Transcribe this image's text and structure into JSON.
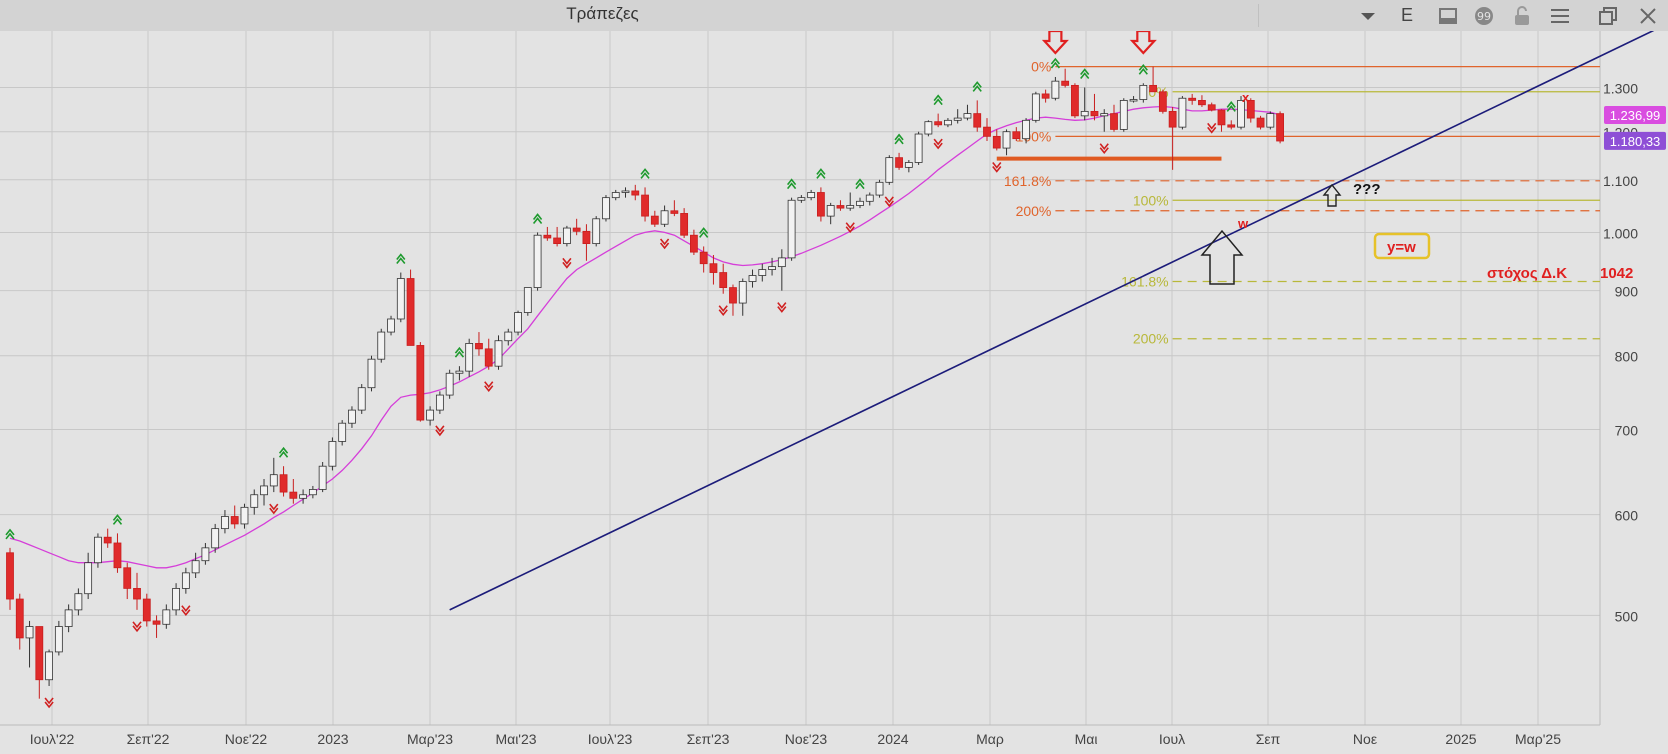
{
  "window": {
    "title": "Τράπεζες",
    "toolbar_icons": [
      "dropdown-icon",
      "e-button",
      "panel-icon",
      "comment-icon",
      "lock-icon",
      "menu-icon",
      "restore-window-icon",
      "close-icon"
    ],
    "e_label": "E"
  },
  "chart_data": {
    "type": "candlestick",
    "x_tick_labels": [
      "Ιουλ'22",
      "Σεπ'22",
      "Νοε'22",
      "2023",
      "Μαρ'23",
      "Μαι'23",
      "Ιουλ'23",
      "Σεπ'23",
      "Νοε'23",
      "2024",
      "Μαρ",
      "Μαι",
      "Ιουλ",
      "Σεπ",
      "Νοε",
      "2025",
      "Μαρ'25"
    ],
    "y_tick_labels": [
      "500",
      "600",
      "700",
      "800",
      "900",
      "1.000",
      "1.100",
      "1.200",
      "1.300"
    ],
    "y_ticks": [
      500,
      600,
      700,
      800,
      900,
      1000,
      1100,
      1200,
      1300
    ],
    "ylim": [
      410,
      1440
    ],
    "y_scale": "log",
    "grid": true,
    "price_badges": [
      {
        "label": "1.236,99",
        "value": 1236.99,
        "color": "#d94de0"
      },
      {
        "label": "1.180,33",
        "value": 1180.33,
        "color": "#8e4fd6"
      }
    ],
    "candles": [
      [
        560,
        565,
        505,
        515
      ],
      [
        515,
        520,
        470,
        480
      ],
      [
        480,
        495,
        455,
        490
      ],
      [
        490,
        490,
        430,
        445
      ],
      [
        445,
        470,
        440,
        468
      ],
      [
        468,
        495,
        465,
        490
      ],
      [
        490,
        510,
        485,
        505
      ],
      [
        505,
        525,
        500,
        520
      ],
      [
        520,
        560,
        515,
        550
      ],
      [
        550,
        580,
        545,
        576
      ],
      [
        576,
        585,
        565,
        570
      ],
      [
        570,
        580,
        540,
        545
      ],
      [
        545,
        550,
        515,
        525
      ],
      [
        525,
        540,
        505,
        515
      ],
      [
        515,
        520,
        490,
        495
      ],
      [
        495,
        500,
        480,
        492
      ],
      [
        492,
        510,
        488,
        505
      ],
      [
        505,
        530,
        500,
        525
      ],
      [
        525,
        545,
        520,
        540
      ],
      [
        540,
        560,
        535,
        552
      ],
      [
        552,
        570,
        548,
        565
      ],
      [
        565,
        590,
        560,
        585
      ],
      [
        585,
        605,
        580,
        598
      ],
      [
        598,
        610,
        585,
        590
      ],
      [
        590,
        612,
        585,
        608
      ],
      [
        608,
        628,
        600,
        622
      ],
      [
        622,
        640,
        610,
        632
      ],
      [
        632,
        665,
        625,
        645
      ],
      [
        645,
        655,
        620,
        625
      ],
      [
        625,
        640,
        612,
        618
      ],
      [
        618,
        628,
        612,
        622
      ],
      [
        622,
        632,
        618,
        628
      ],
      [
        628,
        660,
        625,
        655
      ],
      [
        655,
        690,
        650,
        685
      ],
      [
        685,
        712,
        680,
        708
      ],
      [
        708,
        730,
        702,
        725
      ],
      [
        725,
        760,
        720,
        755
      ],
      [
        755,
        800,
        750,
        795
      ],
      [
        795,
        840,
        790,
        835
      ],
      [
        835,
        860,
        830,
        855
      ],
      [
        855,
        930,
        850,
        920
      ],
      [
        920,
        935,
        815,
        815
      ],
      [
        815,
        820,
        710,
        712
      ],
      [
        712,
        730,
        705,
        725
      ],
      [
        725,
        750,
        720,
        745
      ],
      [
        745,
        780,
        740,
        775
      ],
      [
        775,
        785,
        765,
        778
      ],
      [
        778,
        825,
        770,
        818
      ],
      [
        818,
        835,
        800,
        810
      ],
      [
        810,
        825,
        780,
        785
      ],
      [
        785,
        830,
        780,
        822
      ],
      [
        822,
        840,
        815,
        835
      ],
      [
        835,
        868,
        830,
        865
      ],
      [
        865,
        905,
        860,
        905
      ],
      [
        905,
        1000,
        900,
        995
      ],
      [
        995,
        1010,
        985,
        990
      ],
      [
        990,
        1010,
        975,
        980
      ],
      [
        980,
        1012,
        975,
        1008
      ],
      [
        1008,
        1025,
        995,
        1002
      ],
      [
        1002,
        1015,
        950,
        980
      ],
      [
        980,
        1030,
        975,
        1025
      ],
      [
        1025,
        1070,
        1020,
        1065
      ],
      [
        1065,
        1080,
        1060,
        1075
      ],
      [
        1075,
        1085,
        1065,
        1078
      ],
      [
        1078,
        1090,
        1060,
        1070
      ],
      [
        1070,
        1085,
        1020,
        1030
      ],
      [
        1030,
        1040,
        1010,
        1015
      ],
      [
        1015,
        1050,
        1010,
        1040
      ],
      [
        1040,
        1060,
        1030,
        1035
      ],
      [
        1035,
        1045,
        990,
        995
      ],
      [
        995,
        1005,
        960,
        965
      ],
      [
        965,
        975,
        930,
        945
      ],
      [
        945,
        960,
        910,
        930
      ],
      [
        930,
        945,
        895,
        905
      ],
      [
        905,
        910,
        860,
        880
      ],
      [
        880,
        920,
        860,
        915
      ],
      [
        915,
        935,
        905,
        925
      ],
      [
        925,
        945,
        915,
        935
      ],
      [
        935,
        955,
        925,
        940
      ],
      [
        940,
        970,
        900,
        955
      ],
      [
        955,
        1065,
        950,
        1060
      ],
      [
        1060,
        1070,
        1055,
        1065
      ],
      [
        1065,
        1080,
        1060,
        1075
      ],
      [
        1075,
        1085,
        1020,
        1030
      ],
      [
        1030,
        1055,
        1015,
        1050
      ],
      [
        1050,
        1060,
        1040,
        1045
      ],
      [
        1045,
        1075,
        1040,
        1050
      ],
      [
        1050,
        1065,
        1045,
        1058
      ],
      [
        1058,
        1075,
        1050,
        1070
      ],
      [
        1070,
        1100,
        1065,
        1095
      ],
      [
        1095,
        1150,
        1090,
        1145
      ],
      [
        1145,
        1155,
        1120,
        1125
      ],
      [
        1125,
        1140,
        1115,
        1135
      ],
      [
        1135,
        1200,
        1130,
        1195
      ],
      [
        1195,
        1225,
        1190,
        1222
      ],
      [
        1222,
        1240,
        1210,
        1215
      ],
      [
        1215,
        1230,
        1210,
        1225
      ],
      [
        1225,
        1250,
        1218,
        1230
      ],
      [
        1230,
        1260,
        1225,
        1240
      ],
      [
        1240,
        1270,
        1200,
        1210
      ],
      [
        1210,
        1230,
        1180,
        1190
      ],
      [
        1190,
        1205,
        1160,
        1165
      ],
      [
        1165,
        1205,
        1150,
        1200
      ],
      [
        1200,
        1210,
        1180,
        1185
      ],
      [
        1185,
        1230,
        1175,
        1225
      ],
      [
        1225,
        1290,
        1220,
        1285
      ],
      [
        1285,
        1295,
        1265,
        1275
      ],
      [
        1275,
        1325,
        1270,
        1315
      ],
      [
        1315,
        1345,
        1300,
        1305
      ],
      [
        1305,
        1310,
        1230,
        1235
      ],
      [
        1235,
        1300,
        1225,
        1245
      ],
      [
        1245,
        1285,
        1225,
        1235
      ],
      [
        1235,
        1250,
        1200,
        1240
      ],
      [
        1240,
        1260,
        1200,
        1205
      ],
      [
        1205,
        1275,
        1200,
        1270
      ],
      [
        1270,
        1280,
        1265,
        1272
      ],
      [
        1272,
        1310,
        1265,
        1305
      ],
      [
        1305,
        1350,
        1290,
        1290
      ],
      [
        1290,
        1295,
        1240,
        1245
      ],
      [
        1245,
        1255,
        1120,
        1210
      ],
      [
        1210,
        1280,
        1205,
        1275
      ],
      [
        1275,
        1285,
        1260,
        1270
      ],
      [
        1270,
        1282,
        1255,
        1260
      ],
      [
        1260,
        1265,
        1245,
        1248
      ],
      [
        1248,
        1250,
        1200,
        1215
      ],
      [
        1215,
        1225,
        1205,
        1210
      ],
      [
        1210,
        1280,
        1205,
        1270
      ],
      [
        1270,
        1275,
        1220,
        1230
      ],
      [
        1230,
        1235,
        1205,
        1210
      ],
      [
        1210,
        1245,
        1205,
        1240
      ],
      [
        1240,
        1245,
        1175,
        1180
      ]
    ],
    "ma_line": [
      575,
      572,
      568,
      564,
      560,
      556,
      552,
      550,
      550,
      550,
      551,
      552,
      551,
      549,
      547,
      545,
      545,
      547,
      550,
      554,
      558,
      563,
      568,
      573,
      578,
      584,
      590,
      597,
      603,
      610,
      617,
      624,
      632,
      640,
      650,
      662,
      676,
      692,
      712,
      730,
      742,
      745,
      746,
      748,
      752,
      757,
      763,
      770,
      777,
      785,
      795,
      810,
      825,
      840,
      860,
      880,
      900,
      920,
      935,
      945,
      955,
      965,
      975,
      985,
      995,
      1000,
      1003,
      1000,
      995,
      985,
      975,
      965,
      955,
      948,
      944,
      942,
      943,
      945,
      948,
      952,
      957,
      963,
      970,
      977,
      985,
      993,
      1002,
      1012,
      1023,
      1035,
      1047,
      1060,
      1073,
      1088,
      1103,
      1120,
      1135,
      1150,
      1165,
      1180,
      1195,
      1205,
      1213,
      1220,
      1225,
      1230,
      1232,
      1230,
      1227,
      1225,
      1226,
      1230,
      1235,
      1240,
      1245,
      1250,
      1253,
      1255,
      1256,
      1254,
      1250,
      1246,
      1246,
      1248,
      1250,
      1250,
      1249,
      1247,
      1245,
      1243,
      1237
    ],
    "ma_end_index": 130,
    "trendline": [
      [
        45,
        505
      ],
      [
        176,
        1540
      ]
    ],
    "fib_left": [
      {
        "label": "0%",
        "value": 1350,
        "from": 107,
        "color": "#e0642c",
        "style": "solid"
      },
      {
        "label": "100%",
        "value": 1190,
        "from": 107,
        "color": "#e0642c",
        "style": "solid"
      },
      {
        "label": "161.8%",
        "value": 1098,
        "from": 107,
        "color": "#e0642c",
        "style": "dashed"
      },
      {
        "label": "200%",
        "value": 1040,
        "from": 107,
        "color": "#e0642c",
        "style": "dashed"
      }
    ],
    "fib_right": [
      {
        "label": "0%",
        "value": 1290,
        "from": 119,
        "color": "#b8b83a",
        "style": "solid"
      },
      {
        "label": "100%",
        "value": 1060,
        "from": 119,
        "color": "#b8b83a",
        "style": "solid"
      },
      {
        "label": "161.8%",
        "value": 915,
        "from": 119,
        "color": "#b8b83a",
        "style": "dashed"
      },
      {
        "label": "200%",
        "value": 825,
        "from": 119,
        "color": "#b8b83a",
        "style": "dashed"
      }
    ],
    "support_line": {
      "value": 1143,
      "from": 101,
      "to": 124,
      "color": "#e05a22"
    },
    "annotations": {
      "wave_x": "x",
      "wave_w": "w",
      "question": "???",
      "y_equals_w": "y=w",
      "target_label": "στόχος  Δ.Κ",
      "target_value": "1042"
    },
    "peak_arrows": [
      [
        107,
        "top"
      ],
      [
        116,
        "top"
      ]
    ],
    "peaks_markers": [
      0,
      11,
      28,
      40,
      46,
      54,
      65,
      71,
      80,
      83,
      87,
      91,
      95,
      99,
      107,
      110,
      116,
      125
    ],
    "trough_markers": [
      4,
      13,
      18,
      27,
      44,
      49,
      57,
      67,
      73,
      79,
      86,
      90,
      95,
      101,
      112,
      123
    ]
  }
}
